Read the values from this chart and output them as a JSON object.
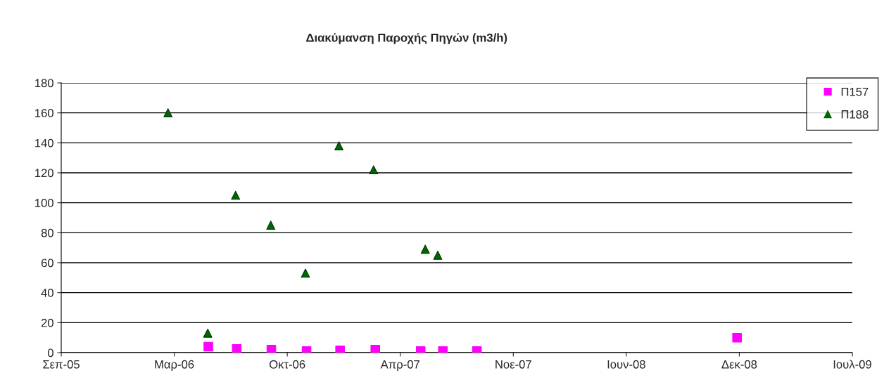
{
  "chart_data": {
    "type": "scatter",
    "title": "Διακύμανση Παροχής Πηγών (m3/h)",
    "series": [
      {
        "name": "Π157",
        "color": "#ff00ff",
        "marker": "square",
        "x": [
          "2006-05-27",
          "2006-07-16",
          "2006-09-15",
          "2006-11-16",
          "2007-01-14",
          "2007-03-17",
          "2007-06-05",
          "2007-07-14",
          "2007-09-12",
          "2008-12-13"
        ],
        "values": [
          4,
          2.5,
          2,
          1,
          1.5,
          2,
          1,
          1,
          1,
          10
        ]
      },
      {
        "name": "Π188",
        "color": "#006600",
        "marker": "triangle",
        "x": [
          "2006-03-17",
          "2006-05-26",
          "2006-07-14",
          "2006-09-14",
          "2006-11-14",
          "2007-01-12",
          "2007-03-14",
          "2007-06-13",
          "2007-07-05"
        ],
        "values": [
          160,
          13,
          105,
          85,
          53,
          138,
          122,
          69,
          65
        ]
      }
    ],
    "xlim": [
      "2005-09-10",
      "2009-07-04"
    ],
    "xticks": [
      {
        "value": "2005-09-10",
        "label": "Σεπ-05"
      },
      {
        "value": "2006-03-28",
        "label": "Μαρ-06"
      },
      {
        "value": "2006-10-13",
        "label": "Οκτ-06"
      },
      {
        "value": "2007-04-30",
        "label": "Απρ-07"
      },
      {
        "value": "2007-11-15",
        "label": "Νοε-07"
      },
      {
        "value": "2008-06-01",
        "label": "Ιουν-08"
      },
      {
        "value": "2008-12-17",
        "label": "Δεκ-08"
      },
      {
        "value": "2009-07-04",
        "label": "Ιουλ-09"
      }
    ],
    "ylim": [
      0,
      180
    ],
    "yticks": [
      0,
      20,
      40,
      60,
      80,
      100,
      120,
      140,
      160,
      180
    ],
    "grid": "y",
    "legend": "top right"
  }
}
